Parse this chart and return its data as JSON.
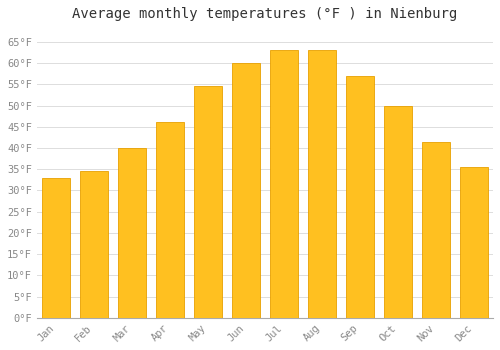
{
  "months": [
    "Jan",
    "Feb",
    "Mar",
    "Apr",
    "May",
    "Jun",
    "Jul",
    "Aug",
    "Sep",
    "Oct",
    "Nov",
    "Dec"
  ],
  "values": [
    33,
    34.5,
    40,
    46,
    54.5,
    60,
    63,
    63,
    57,
    50,
    41.5,
    35.5
  ],
  "bar_color": "#FFC020",
  "bar_edge_color": "#E8A000",
  "title": "Average monthly temperatures (°F ) in Nienburg",
  "ylim": [
    0,
    68
  ],
  "yticks": [
    0,
    5,
    10,
    15,
    20,
    25,
    30,
    35,
    40,
    45,
    50,
    55,
    60,
    65
  ],
  "background_color": "#ffffff",
  "plot_bg_color": "#ffffff",
  "grid_color": "#dddddd",
  "title_fontsize": 10,
  "tick_fontsize": 7.5,
  "font_family": "monospace"
}
